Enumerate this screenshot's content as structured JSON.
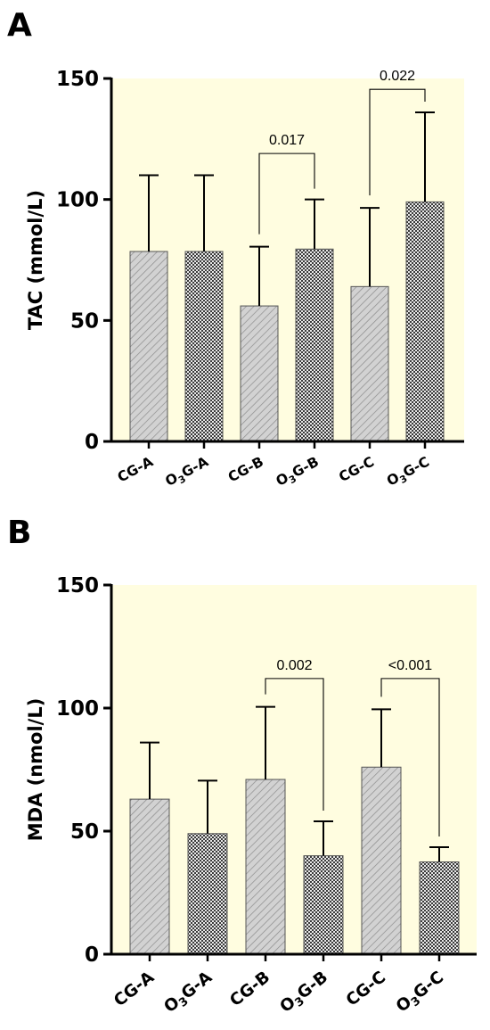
{
  "panel_labels": [
    "A",
    "B"
  ],
  "colors": {
    "plot_background": "#fffde0",
    "bar_edge": "#555555",
    "axis": "#000000"
  },
  "chart_data": [
    {
      "type": "bar",
      "panel": "A",
      "ylabel": "TAC (mmol/L)",
      "ylim": [
        0,
        150
      ],
      "yticks": [
        "0",
        "50",
        "100",
        "150"
      ],
      "categories": [
        {
          "main": "CG-A",
          "suffix": ""
        },
        {
          "main": "O",
          "sub": "3",
          "suffix": "G-A"
        },
        {
          "main": "CG-B",
          "suffix": ""
        },
        {
          "main": "O",
          "sub": "3",
          "suffix": "G-B"
        },
        {
          "main": "CG-C",
          "suffix": ""
        },
        {
          "main": "O",
          "sub": "3",
          "suffix": "G-C"
        }
      ],
      "patterns": [
        "hatch",
        "check",
        "hatch",
        "check",
        "hatch",
        "check"
      ],
      "values": [
        78.5,
        78.5,
        56,
        79.5,
        64,
        99
      ],
      "error_upper": [
        110,
        110,
        80.5,
        100,
        96.5,
        136
      ],
      "comparisons": [
        {
          "from": 2,
          "to": 3,
          "label": "0.017",
          "y": 119
        },
        {
          "from": 4,
          "to": 5,
          "label": "0.022",
          "y": 145.5
        }
      ],
      "grid": false
    },
    {
      "type": "bar",
      "panel": "B",
      "ylabel": "MDA (nmol/L)",
      "ylim": [
        0,
        150
      ],
      "yticks": [
        "0",
        "50",
        "100",
        "150"
      ],
      "categories": [
        {
          "main": "CG-A",
          "suffix": ""
        },
        {
          "main": "O",
          "sub": "3",
          "suffix": "G-A"
        },
        {
          "main": "CG-B",
          "suffix": ""
        },
        {
          "main": "O",
          "sub": "3",
          "suffix": "G-B"
        },
        {
          "main": "CG-C",
          "suffix": ""
        },
        {
          "main": "O",
          "sub": "3",
          "suffix": "G-C"
        }
      ],
      "patterns": [
        "hatch",
        "check",
        "hatch",
        "check",
        "hatch",
        "check"
      ],
      "values": [
        63,
        49,
        71,
        40,
        76,
        37.5
      ],
      "error_upper": [
        86,
        70.5,
        100.5,
        54,
        99.5,
        43.5
      ],
      "comparisons": [
        {
          "from": 2,
          "to": 3,
          "label": "0.002",
          "y": 112
        },
        {
          "from": 4,
          "to": 5,
          "label": "<0.001",
          "y": 112
        }
      ],
      "grid": false
    }
  ]
}
